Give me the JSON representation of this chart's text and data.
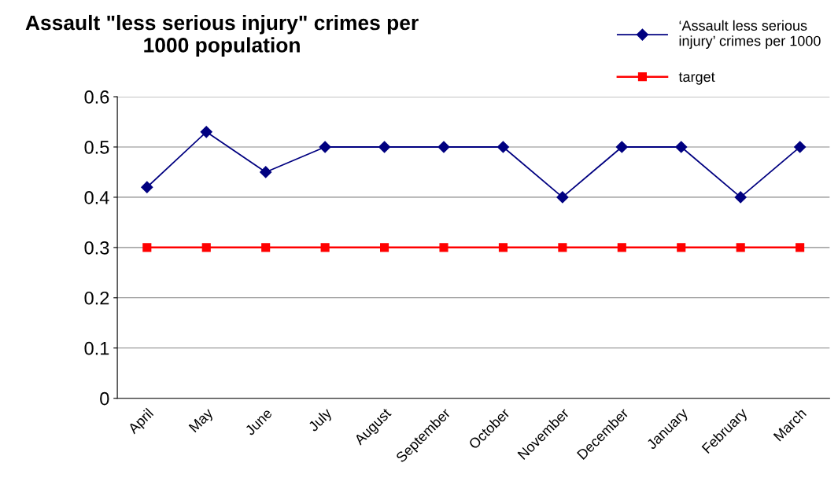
{
  "chart_data": {
    "type": "line",
    "title": "Assault \"less serious injury\" crimes per\n1000 population",
    "categories": [
      "April",
      "May",
      "June",
      "July",
      "August",
      "September",
      "October",
      "November",
      "December",
      "January",
      "February",
      "March"
    ],
    "series": [
      {
        "name": "‘Assault less serious\ninjury’ crimes per 1000",
        "color": "#000080",
        "marker": "diamond",
        "values": [
          0.42,
          0.53,
          0.45,
          0.5,
          0.5,
          0.5,
          0.5,
          0.4,
          0.5,
          0.5,
          0.4,
          0.5
        ]
      },
      {
        "name": "target",
        "color": "#ff0000",
        "marker": "square",
        "values": [
          0.3,
          0.3,
          0.3,
          0.3,
          0.3,
          0.3,
          0.3,
          0.3,
          0.3,
          0.3,
          0.3,
          0.3
        ]
      }
    ],
    "ylim": [
      0,
      0.6
    ],
    "yticks": [
      0,
      0.1,
      0.2,
      0.3,
      0.4,
      0.5,
      0.6
    ],
    "grid": "y",
    "legend": "top right"
  }
}
